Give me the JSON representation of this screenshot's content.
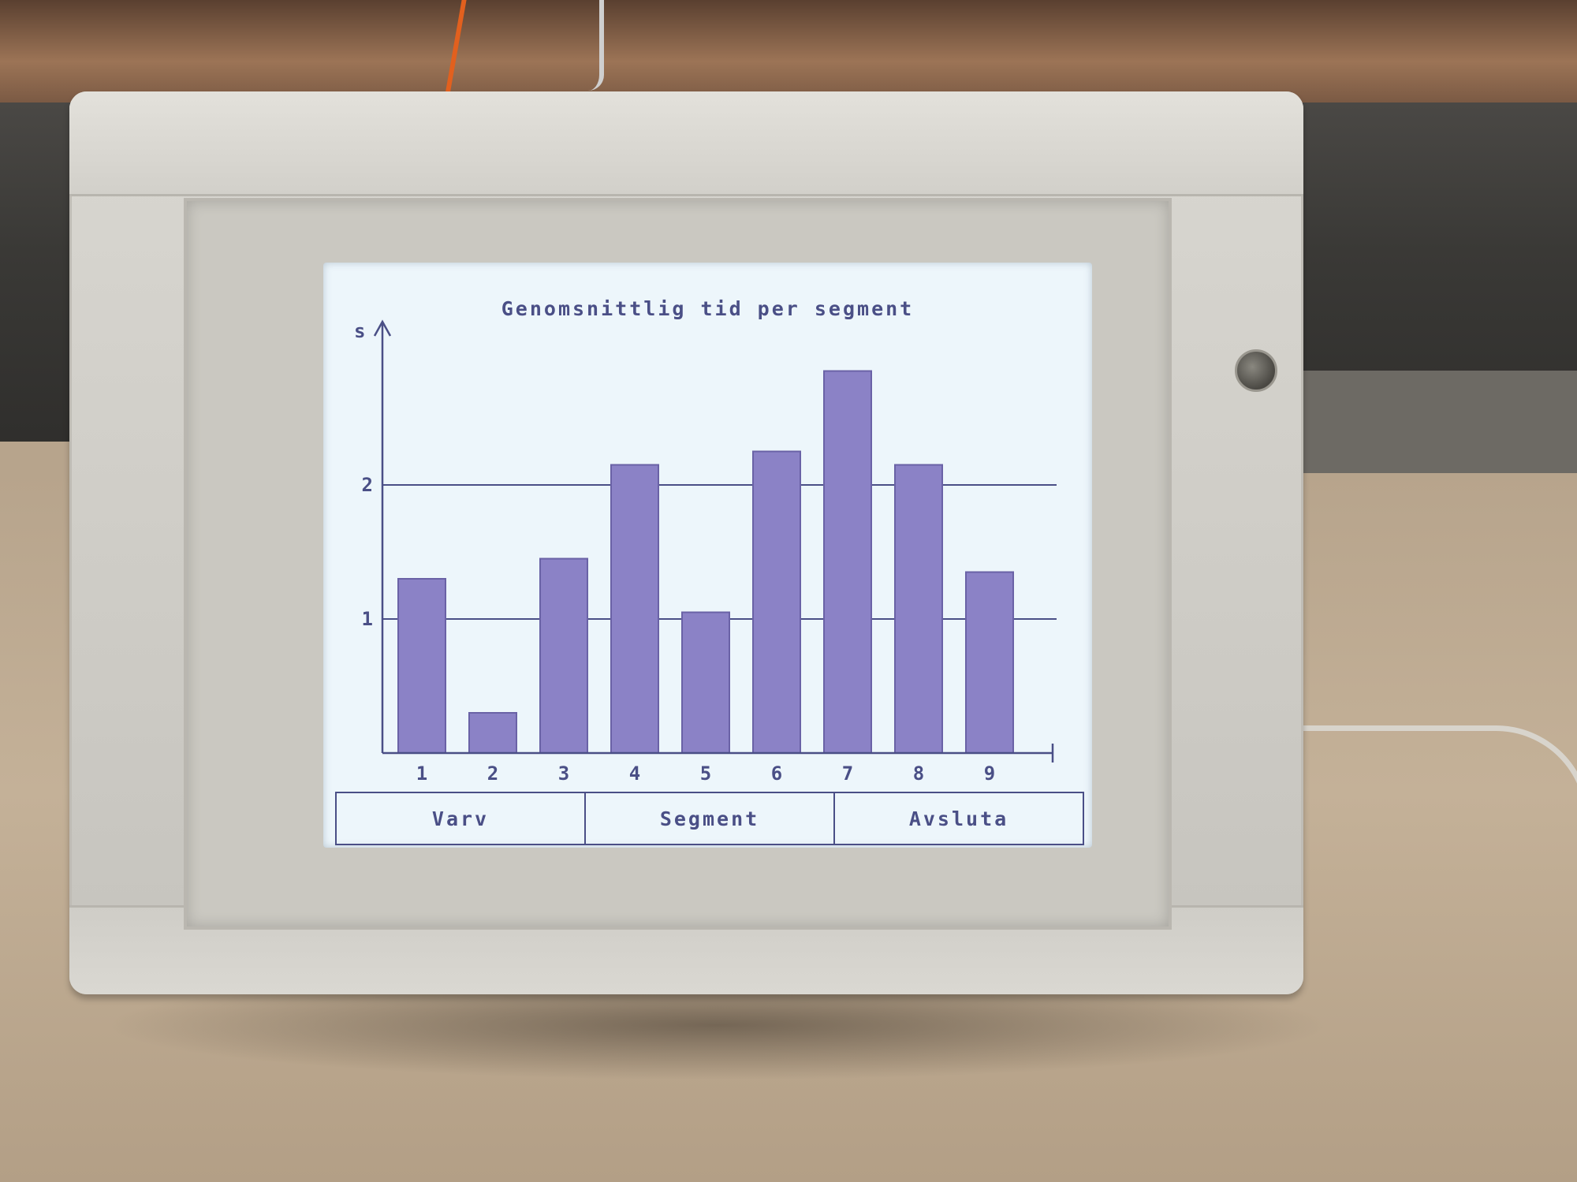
{
  "screen": {
    "title": "Genomsnittlig tid per segment",
    "buttons": [
      {
        "label": "Varv"
      },
      {
        "label": "Segment"
      },
      {
        "label": "Avsluta"
      }
    ]
  },
  "colors": {
    "screen_bg": "#edf6fb",
    "bar": "#8b82c6",
    "bar_edge": "#6a62a6",
    "ink": "#4a4f86",
    "device": "#d2d0ca"
  },
  "chart_data": {
    "type": "bar",
    "title": "Genomsnittlig tid per segment",
    "ylabel": "s",
    "xlabel": "",
    "categories": [
      "1",
      "2",
      "3",
      "4",
      "5",
      "6",
      "7",
      "8",
      "9"
    ],
    "values": [
      1.3,
      0.3,
      1.45,
      2.15,
      1.05,
      2.25,
      2.85,
      2.15,
      1.35
    ],
    "yticks": [
      "1",
      "2"
    ],
    "ytick_values": [
      1,
      2
    ],
    "ylim": [
      0,
      3.1
    ],
    "grid": "horizontal at ticks",
    "legend": "none"
  }
}
